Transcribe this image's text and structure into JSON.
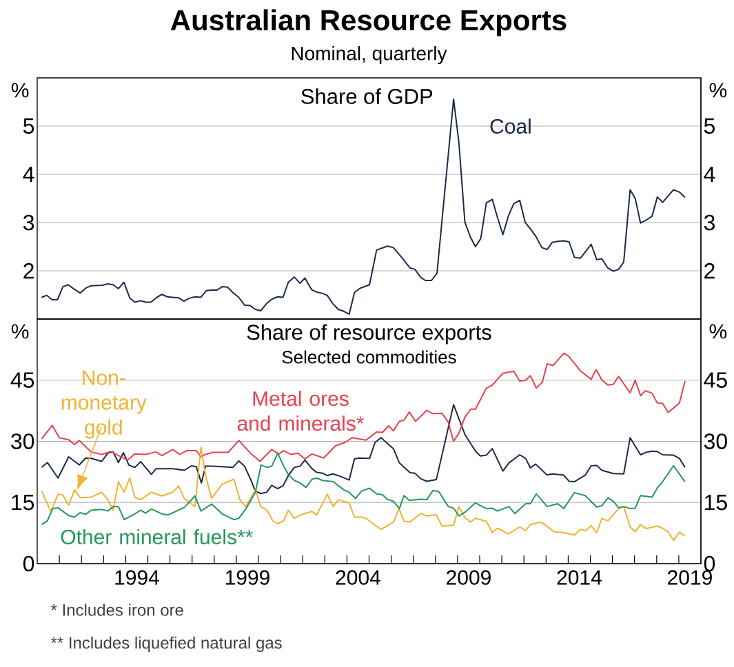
{
  "chart_data": [
    {
      "type": "line",
      "title": "Australian Resource Exports",
      "subtitle": "Nominal, quarterly",
      "annotations": [
        "Share of GDP"
      ],
      "xlim": [
        1990,
        2020
      ],
      "ylim": [
        1,
        6
      ],
      "yticks": [
        2,
        3,
        4,
        5
      ],
      "y2lim": [
        1,
        6
      ],
      "y2ticks": [
        2,
        3,
        4,
        5
      ],
      "ylabel": "%",
      "y2label": "%",
      "grid": "y",
      "tick_labels": "y",
      "series": [
        {
          "name": "Coal",
          "color": "#1b2a4a",
          "x": [
            1990.2,
            1990.43,
            1990.68,
            1990.92,
            1991.16,
            1991.4,
            1991.67,
            1991.94,
            1992.19,
            1992.44,
            1992.94,
            1993.19,
            1993.43,
            1993.67,
            1993.92,
            1994.18,
            1994.41,
            1994.68,
            1994.89,
            1995.14,
            1995.38,
            1995.62,
            1995.89,
            1996.12,
            1996.39,
            1996.63,
            1996.87,
            1997.13,
            1997.4,
            1997.65,
            1997.88,
            1998.13,
            1998.36,
            1998.6,
            1998.84,
            1999.11,
            1999.37,
            1999.62,
            1999.86,
            2000.1,
            2000.37,
            2000.6,
            2000.87,
            2001.11,
            2001.35,
            2001.62,
            2001.88,
            2002.1,
            2002.4,
            2002.63,
            2002.9,
            2003.11,
            2003.36,
            2003.61,
            2003.86,
            2004.1,
            2004.34,
            2004.6,
            2005.02,
            2005.34,
            2005.83,
            2006.1,
            2006.47,
            2006.85,
            2007.07,
            2007.34,
            2007.55,
            2007.82,
            2008.07,
            2008.82,
            2009.06,
            2009.33,
            2009.58,
            2009.81,
            2010.05,
            2010.3,
            2010.57,
            2010.8,
            2011.05,
            2011.3,
            2011.54,
            2011.81,
            2012.06,
            2012.29,
            2012.53,
            2012.81,
            2013.05,
            2013.28,
            2013.53,
            2013.8,
            2014.04,
            2014.28,
            2014.55,
            2014.79,
            2015.04,
            2015.29,
            2015.52,
            2015.79,
            2016.04,
            2016.28,
            2016.51,
            2016.8,
            2017.03,
            2017.27,
            2017.52,
            2017.79,
            2018.03,
            2018.27,
            2018.76,
            2019.03,
            2019.28
          ],
          "values": [
            1.45,
            1.49,
            1.4,
            1.4,
            1.67,
            1.71,
            1.62,
            1.54,
            1.64,
            1.69,
            1.7,
            1.73,
            1.71,
            1.63,
            1.76,
            1.44,
            1.35,
            1.38,
            1.35,
            1.35,
            1.44,
            1.51,
            1.46,
            1.45,
            1.44,
            1.37,
            1.43,
            1.46,
            1.45,
            1.59,
            1.6,
            1.6,
            1.67,
            1.66,
            1.55,
            1.45,
            1.29,
            1.28,
            1.2,
            1.17,
            1.32,
            1.41,
            1.46,
            1.45,
            1.76,
            1.87,
            1.74,
            1.85,
            1.61,
            1.56,
            1.53,
            1.49,
            1.32,
            1.2,
            1.16,
            1.1,
            1.55,
            1.64,
            1.71,
            2.43,
            2.51,
            2.48,
            2.28,
            2.06,
            2.03,
            1.86,
            1.8,
            1.8,
            1.95,
            5.56,
            4.66,
            3.01,
            2.7,
            2.5,
            2.67,
            3.41,
            3.48,
            3.11,
            2.75,
            3.14,
            3.39,
            3.46,
            3.0,
            2.87,
            2.72,
            2.48,
            2.44,
            2.59,
            2.61,
            2.62,
            2.6,
            2.28,
            2.26,
            2.4,
            2.55,
            2.23,
            2.25,
            2.06,
            1.99,
            2.03,
            2.18,
            3.68,
            3.5,
            2.99,
            3.05,
            3.13,
            3.53,
            3.42,
            3.68,
            3.63,
            3.52
          ]
        }
      ]
    },
    {
      "type": "line",
      "title": "Share of resource exports",
      "subtitle": "Selected commodities",
      "annotations": [
        "* Includes iron ore",
        "** Includes liquefied natural gas"
      ],
      "xlim": [
        1990,
        2020
      ],
      "ylim": [
        0,
        60
      ],
      "yticks": [
        0,
        15,
        30,
        45
      ],
      "y2lim": [
        0,
        60
      ],
      "y2ticks": [
        0,
        15,
        30,
        45
      ],
      "ylabel": "%",
      "y2label": "%",
      "grid": "y",
      "xticks": [
        {
          "value": 1991,
          "label": null
        },
        {
          "value": 1992,
          "label": null
        },
        {
          "value": 1993,
          "label": null
        },
        {
          "value": 1994,
          "label": null
        },
        {
          "value": 1994.5,
          "label": "1994"
        },
        {
          "value": 1995,
          "label": null
        },
        {
          "value": 1996,
          "label": null
        },
        {
          "value": 1997,
          "label": null
        },
        {
          "value": 1998,
          "label": null
        },
        {
          "value": 1999,
          "label": null
        },
        {
          "value": 1999.5,
          "label": "1999"
        },
        {
          "value": 2000,
          "label": null
        },
        {
          "value": 2001,
          "label": null
        },
        {
          "value": 2002,
          "label": null
        },
        {
          "value": 2003,
          "label": null
        },
        {
          "value": 2004,
          "label": null
        },
        {
          "value": 2004.5,
          "label": "2004"
        },
        {
          "value": 2005,
          "label": null
        },
        {
          "value": 2006,
          "label": null
        },
        {
          "value": 2007,
          "label": null
        },
        {
          "value": 2008,
          "label": null
        },
        {
          "value": 2009,
          "label": null
        },
        {
          "value": 2009.5,
          "label": "2009"
        },
        {
          "value": 2010,
          "label": null
        },
        {
          "value": 2011,
          "label": null
        },
        {
          "value": 2012,
          "label": null
        },
        {
          "value": 2013,
          "label": null
        },
        {
          "value": 2014,
          "label": null
        },
        {
          "value": 2014.5,
          "label": "2014"
        },
        {
          "value": 2015,
          "label": null
        },
        {
          "value": 2016,
          "label": null
        },
        {
          "value": 2017,
          "label": null
        },
        {
          "value": 2018,
          "label": null
        },
        {
          "value": 2019,
          "label": null
        },
        {
          "value": 2019.5,
          "label": "2019"
        }
      ],
      "series": [
        {
          "color": "#1b2a4a",
          "x": [
            1990.2,
            1990.46,
            1990.94,
            1991.42,
            1991.69,
            1991.9,
            1992.19,
            1992.44,
            1992.92,
            1993.19,
            1993.43,
            1993.67,
            1993.9,
            1994.14,
            1994.41,
            1994.68,
            1995.16,
            1995.38,
            1996.12,
            1996.65,
            1996.97,
            1997.19,
            1997.42,
            1997.61,
            1997.93,
            1998.84,
            1999.11,
            1999.37,
            1999.62,
            1999.86,
            2000.1,
            2000.37,
            2000.6,
            2000.87,
            2001.11,
            2001.35,
            2001.62,
            2001.88,
            2002.1,
            2002.42,
            2002.63,
            2002.9,
            2003.11,
            2003.36,
            2003.61,
            2004.1,
            2004.34,
            2004.55,
            2005.02,
            2005.27,
            2005.54,
            2006.1,
            2006.37,
            2006.85,
            2007.07,
            2007.34,
            2007.61,
            2008.04,
            2008.82,
            2009.33,
            2009.81,
            2010.03,
            2010.3,
            2010.57,
            2011.05,
            2011.32,
            2011.81,
            2012.08,
            2012.29,
            2012.53,
            2013.05,
            2013.28,
            2013.8,
            2014.04,
            2014.28,
            2014.77,
            2015.04,
            2015.29,
            2015.52,
            2016.04,
            2016.51,
            2016.8,
            2017.03,
            2017.27,
            2017.52,
            2017.79,
            2018.03,
            2018.27,
            2018.76,
            2019.03,
            2019.28
          ],
          "values": [
            23.6,
            24.8,
            21.0,
            26.2,
            25.1,
            24.2,
            25.9,
            25.8,
            25.1,
            27.1,
            27.4,
            24.8,
            27.2,
            24.2,
            23.6,
            25.0,
            21.9,
            23.3,
            23.3,
            22.9,
            24.0,
            23.8,
            19.8,
            23.9,
            23.9,
            23.6,
            25.2,
            23.9,
            21.0,
            17.8,
            17.2,
            17.5,
            19.2,
            18.4,
            19.1,
            21.6,
            23.6,
            23.9,
            25.4,
            23.3,
            22.4,
            22.2,
            21.6,
            22.0,
            21.6,
            20.5,
            25.7,
            25.9,
            25.8,
            29.7,
            30.9,
            28.2,
            24.7,
            22.3,
            22.2,
            20.8,
            20.2,
            20.6,
            39.0,
            31.7,
            27.6,
            26.4,
            26.6,
            28.2,
            22.7,
            24.7,
            26.7,
            25.8,
            23.5,
            24.4,
            21.7,
            22.0,
            21.7,
            20.2,
            20.1,
            21.7,
            24.0,
            24.1,
            22.9,
            22.1,
            22.0,
            30.9,
            28.8,
            26.7,
            27.3,
            27.6,
            27.5,
            26.7,
            26.6,
            25.8,
            23.6
          ]
        },
        {
          "name": "Metal ores and minerals*",
          "color": "#e8414f",
          "x": [
            1990.2,
            1990.68,
            1991.0,
            1991.42,
            1991.69,
            1991.9,
            1992.44,
            1992.92,
            1993.34,
            1993.67,
            1994.09,
            1994.41,
            1994.89,
            1995.37,
            1995.64,
            1996.12,
            1996.44,
            1996.76,
            1997.19,
            1997.4,
            1997.61,
            1997.93,
            1998.63,
            1999.11,
            1999.64,
            2000.07,
            2000.6,
            2000.92,
            2001.14,
            2001.46,
            2001.78,
            2002.1,
            2002.42,
            2002.95,
            2003.48,
            2003.91,
            2004.23,
            2004.86,
            2005.34,
            2005.61,
            2005.88,
            2006.1,
            2006.37,
            2006.58,
            2006.82,
            2007.1,
            2007.61,
            2007.88,
            2008.29,
            2008.58,
            2008.82,
            2009.06,
            2009.33,
            2009.6,
            2009.81,
            2010.3,
            2010.57,
            2011.05,
            2011.54,
            2011.81,
            2012.08,
            2012.29,
            2012.56,
            2012.83,
            2013.05,
            2013.32,
            2013.8,
            2014.02,
            2014.55,
            2015.04,
            2015.26,
            2015.53,
            2015.8,
            2016.04,
            2016.28,
            2016.8,
            2017.03,
            2017.27,
            2017.49,
            2017.79,
            2018.03,
            2018.27,
            2018.52,
            2019.03,
            2019.28
          ],
          "values": [
            30.6,
            33.9,
            30.9,
            30.4,
            29.2,
            30.2,
            27.4,
            26.8,
            27.5,
            26.5,
            25.4,
            26.9,
            26.8,
            27.4,
            26.5,
            28.0,
            26.8,
            27.7,
            27.7,
            26.2,
            26.8,
            27.3,
            27.3,
            30.2,
            27.1,
            25.1,
            28.0,
            26.9,
            27.7,
            26.8,
            27.1,
            25.7,
            26.9,
            25.9,
            28.9,
            29.7,
            30.9,
            30.3,
            32.3,
            32.2,
            33.8,
            32.6,
            34.9,
            35.2,
            37.2,
            34.9,
            37.6,
            36.8,
            36.9,
            34.7,
            30.0,
            32.0,
            35.9,
            37.9,
            37.9,
            43.0,
            43.8,
            46.7,
            47.2,
            44.8,
            45.0,
            46.1,
            43.1,
            44.5,
            49.0,
            48.6,
            51.6,
            50.9,
            47.3,
            45.2,
            47.6,
            45.0,
            43.8,
            44.0,
            45.9,
            41.9,
            45.0,
            41.2,
            42.4,
            41.8,
            39.4,
            39.3,
            37.1,
            39.4,
            44.8
          ]
        },
        {
          "name": "Non-monetary gold",
          "color": "#f2b233",
          "x": [
            1990.2,
            1990.62,
            1990.94,
            1991.16,
            1991.42,
            1991.69,
            1991.94,
            1992.44,
            1992.92,
            1993.19,
            1993.43,
            1993.67,
            1993.93,
            1994.18,
            1994.41,
            1994.68,
            1995.16,
            1995.64,
            1996.12,
            1996.39,
            1996.65,
            1997.13,
            1997.4,
            1997.61,
            1997.88,
            1998.36,
            1998.89,
            1999.16,
            1999.43,
            1999.86,
            2000.1,
            2000.39,
            2000.65,
            2000.87,
            2001.14,
            2001.35,
            2001.62,
            2001.88,
            2002.42,
            2002.63,
            2003.11,
            2003.38,
            2003.61,
            2004.1,
            2004.34,
            2004.66,
            2004.86,
            2005.54,
            2006.1,
            2006.35,
            2006.58,
            2006.85,
            2007.34,
            2007.61,
            2008.04,
            2008.29,
            2008.82,
            2009.06,
            2009.33,
            2009.58,
            2009.81,
            2010.3,
            2010.57,
            2010.8,
            2011.3,
            2011.81,
            2012.08,
            2012.29,
            2012.78,
            2013.37,
            2013.8,
            2014.28,
            2014.55,
            2014.79,
            2015.04,
            2015.29,
            2015.52,
            2015.8,
            2016.28,
            2016.51,
            2016.8,
            2017.03,
            2017.27,
            2017.52,
            2018.03,
            2018.27,
            2018.52,
            2018.76,
            2019.03,
            2019.28
          ],
          "values": [
            17.8,
            12.8,
            17.0,
            16.8,
            14.3,
            18.1,
            16.2,
            16.3,
            17.5,
            15.7,
            13.1,
            20.1,
            17.5,
            21.0,
            16.3,
            15.7,
            17.5,
            16.6,
            17.5,
            19.0,
            16.0,
            14.0,
            28.6,
            21.6,
            16.0,
            19.5,
            20.7,
            15.7,
            14.0,
            18.2,
            14.0,
            13.1,
            10.5,
            9.8,
            10.5,
            13.1,
            11.1,
            11.9,
            12.8,
            11.9,
            17.0,
            14.0,
            15.7,
            14.9,
            11.4,
            11.4,
            11.1,
            8.4,
            10.2,
            13.5,
            10.4,
            10.2,
            12.3,
            11.7,
            12.0,
            9.2,
            9.4,
            14.0,
            11.4,
            10.2,
            11.1,
            10.4,
            7.6,
            8.7,
            7.3,
            9.0,
            8.1,
            9.6,
            10.2,
            7.8,
            7.6,
            7.0,
            8.4,
            8.1,
            9.3,
            7.6,
            11.1,
            10.5,
            13.5,
            14.0,
            9.0,
            7.8,
            9.6,
            8.6,
            9.2,
            8.7,
            7.8,
            5.7,
            7.7,
            6.8
          ]
        },
        {
          "name": "Other mineral fuels**",
          "color": "#23985a",
          "x": [
            1990.2,
            1990.46,
            1990.7,
            1990.94,
            1991.42,
            1991.69,
            1991.94,
            1992.19,
            1992.44,
            1992.92,
            1993.19,
            1993.43,
            1993.67,
            1993.93,
            1994.41,
            1994.68,
            1994.89,
            1995.16,
            1995.64,
            1995.9,
            1996.65,
            1997.13,
            1997.4,
            1997.88,
            1998.13,
            1998.36,
            1998.89,
            1999.11,
            1999.43,
            1999.86,
            2000.12,
            2000.39,
            2000.6,
            2000.87,
            2001.14,
            2001.35,
            2001.62,
            2001.88,
            2002.15,
            2002.42,
            2002.63,
            2002.9,
            2003.38,
            2003.86,
            2004.1,
            2004.39,
            2004.66,
            2005.02,
            2005.34,
            2005.61,
            2005.82,
            2006.1,
            2006.37,
            2006.58,
            2006.82,
            2007.34,
            2007.61,
            2007.88,
            2008.15,
            2008.58,
            2008.82,
            2009.06,
            2009.33,
            2009.81,
            2010.3,
            2010.57,
            2010.8,
            2011.32,
            2011.59,
            2012.08,
            2012.29,
            2012.56,
            2013.05,
            2013.53,
            2013.8,
            2014.28,
            2014.55,
            2014.77,
            2015.29,
            2015.52,
            2015.8,
            2016.04,
            2016.28,
            2016.51,
            2016.8,
            2017.03,
            2017.27,
            2017.79,
            2018.03,
            2018.27,
            2018.76,
            2019.28
          ],
          "values": [
            9.6,
            10.5,
            13.5,
            13.7,
            11.8,
            11.4,
            12.5,
            12.1,
            13.1,
            13.3,
            12.9,
            14.0,
            14.0,
            10.8,
            12.2,
            13.1,
            12.4,
            13.4,
            12.2,
            11.9,
            13.8,
            16.6,
            12.9,
            14.6,
            13.4,
            12.2,
            10.8,
            11.1,
            13.4,
            17.5,
            24.2,
            23.6,
            23.9,
            27.1,
            23.9,
            21.9,
            20.4,
            19.8,
            18.7,
            20.7,
            21.0,
            20.4,
            20.1,
            18.1,
            17.5,
            16.0,
            17.8,
            18.5,
            17.1,
            16.9,
            15.8,
            15.3,
            13.5,
            16.7,
            15.5,
            15.8,
            15.7,
            17.9,
            17.7,
            14.0,
            13.6,
            11.7,
            12.6,
            14.9,
            13.5,
            13.6,
            12.9,
            14.0,
            12.3,
            14.7,
            14.7,
            17.1,
            14.0,
            14.7,
            13.5,
            17.4,
            17.0,
            16.7,
            13.9,
            14.2,
            16.1,
            15.3,
            13.7,
            14.0,
            13.5,
            13.6,
            16.7,
            16.3,
            18.6,
            20.1,
            24.0,
            20.1
          ]
        }
      ]
    }
  ]
}
